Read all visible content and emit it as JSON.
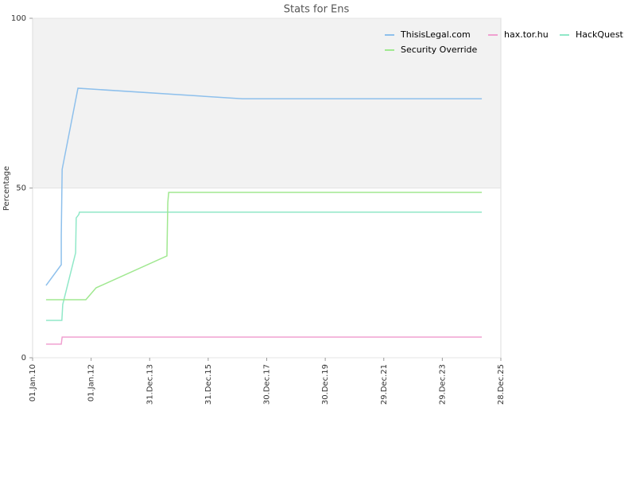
{
  "chart_data": {
    "type": "line",
    "title": "Stats for Ens",
    "y_label": "Percentage",
    "xlim": [
      2010.0,
      2026.0
    ],
    "xticks": [
      {
        "value": 2010.0,
        "label": "01.Jan.10"
      },
      {
        "value": 2012.0,
        "label": "01.Jan.12"
      },
      {
        "value": 2014.0,
        "label": "31.Dec.13"
      },
      {
        "value": 2016.0,
        "label": "31.Dec.15"
      },
      {
        "value": 2018.0,
        "label": "30.Dec.17"
      },
      {
        "value": 2020.0,
        "label": "30.Dec.19"
      },
      {
        "value": 2022.0,
        "label": "29.Dec.21"
      },
      {
        "value": 2024.0,
        "label": "29.Dec.23"
      },
      {
        "value": 2026.0,
        "label": "28.Dec.25"
      }
    ],
    "ylim": [
      0,
      100
    ],
    "yticks": [
      0,
      50,
      100
    ],
    "legend": "top-right",
    "series": [
      {
        "name": "ThisisLegal.com",
        "color": "#8ec0ec",
        "x": [
          2010.46,
          2010.98,
          2010.98,
          2011.01,
          2011.55,
          2017.17,
          2025.35
        ],
        "values": [
          21.3,
          27.4,
          36,
          55.5,
          79.4,
          76.3,
          76.3
        ]
      },
      {
        "name": "hax.tor.hu",
        "color": "#f0a0d0",
        "x": [
          2010.46,
          2010.98,
          2011.01,
          2025.35
        ],
        "values": [
          4,
          4,
          6.1,
          6.1
        ]
      },
      {
        "name": "HackQuest",
        "color": "#90e8c8",
        "x": [
          2010.46,
          2011.0,
          2011.03,
          2011.47,
          2011.49,
          2011.58,
          2011.6,
          2025.35
        ],
        "values": [
          11,
          11,
          15.7,
          30.9,
          41.2,
          42.2,
          42.9,
          42.9
        ]
      },
      {
        "name": "Security Override",
        "color": "#a0e890",
        "x": [
          2010.46,
          2011.82,
          2012.17,
          2014.59,
          2014.62,
          2014.65,
          2025.35
        ],
        "values": [
          17.1,
          17.1,
          20.6,
          30.0,
          45.7,
          48.7,
          48.7
        ]
      }
    ]
  }
}
